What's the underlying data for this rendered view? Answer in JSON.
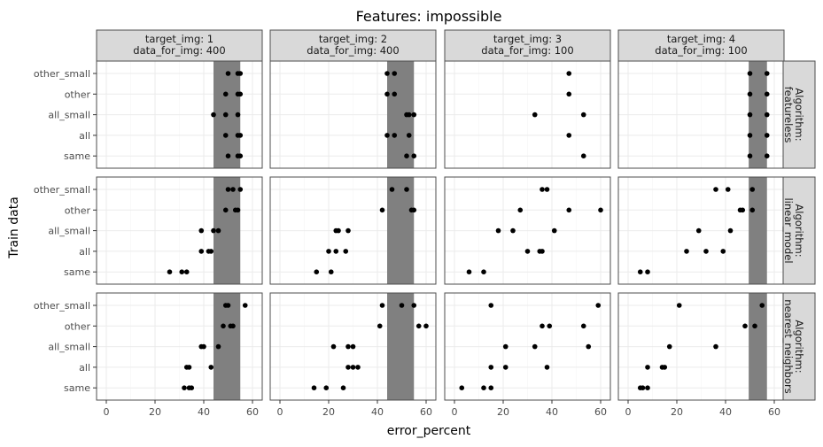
{
  "chart_data": {
    "type": "scatter",
    "title": "Features: impossible",
    "xlabel": "error_percent",
    "ylabel": "Train data",
    "xlim": [
      -4,
      64
    ],
    "xticks": [
      0,
      20,
      40,
      60
    ],
    "y_categories": [
      "other_small",
      "other",
      "all_small",
      "all",
      "same"
    ],
    "grid": true,
    "columns": [
      {
        "line1": "target_img: 1",
        "line2": "data_for_img: 400",
        "band": [
          44,
          55
        ]
      },
      {
        "line1": "target_img: 2",
        "line2": "data_for_img: 400",
        "band": [
          44,
          55
        ]
      },
      {
        "line1": "target_img: 3",
        "line2": "data_for_img: 100",
        "band": null
      },
      {
        "line1": "target_img: 4",
        "line2": "data_for_img: 100",
        "band": [
          49.5,
          57
        ]
      }
    ],
    "rows": [
      {
        "line1": "Algorithm:",
        "line2": "featureless"
      },
      {
        "line1": "Algorithm:",
        "line2": "linear_model"
      },
      {
        "line1": "Algorithm:",
        "line2": "nearest_neighbors"
      }
    ],
    "panels": [
      {
        "row": 0,
        "col": 0,
        "points": [
          {
            "y": "other_small",
            "x": [
              50,
              54,
              55
            ]
          },
          {
            "y": "other",
            "x": [
              49,
              54,
              55
            ]
          },
          {
            "y": "all_small",
            "x": [
              44,
              49,
              54
            ]
          },
          {
            "y": "all",
            "x": [
              49,
              54,
              55
            ]
          },
          {
            "y": "same",
            "x": [
              50,
              54,
              55
            ]
          }
        ]
      },
      {
        "row": 0,
        "col": 1,
        "points": [
          {
            "y": "other_small",
            "x": [
              44,
              47
            ]
          },
          {
            "y": "other",
            "x": [
              44,
              47
            ]
          },
          {
            "y": "all_small",
            "x": [
              52,
              53,
              55
            ]
          },
          {
            "y": "all",
            "x": [
              44,
              47,
              53
            ]
          },
          {
            "y": "same",
            "x": [
              52,
              55
            ]
          }
        ]
      },
      {
        "row": 0,
        "col": 2,
        "points": [
          {
            "y": "other_small",
            "x": [
              47
            ]
          },
          {
            "y": "other",
            "x": [
              47
            ]
          },
          {
            "y": "all_small",
            "x": [
              33,
              53
            ]
          },
          {
            "y": "all",
            "x": [
              47
            ]
          },
          {
            "y": "same",
            "x": [
              53
            ]
          }
        ]
      },
      {
        "row": 0,
        "col": 3,
        "points": [
          {
            "y": "other_small",
            "x": [
              50,
              57
            ]
          },
          {
            "y": "other",
            "x": [
              50,
              57
            ]
          },
          {
            "y": "all_small",
            "x": [
              50,
              57
            ]
          },
          {
            "y": "all",
            "x": [
              50,
              57
            ]
          },
          {
            "y": "same",
            "x": [
              50,
              57
            ]
          }
        ]
      },
      {
        "row": 1,
        "col": 0,
        "points": [
          {
            "y": "other_small",
            "x": [
              50,
              52,
              55
            ]
          },
          {
            "y": "other",
            "x": [
              49,
              53,
              54
            ]
          },
          {
            "y": "all_small",
            "x": [
              39,
              44,
              46
            ]
          },
          {
            "y": "all",
            "x": [
              39,
              42,
              43
            ]
          },
          {
            "y": "same",
            "x": [
              26,
              31,
              33
            ]
          }
        ]
      },
      {
        "row": 1,
        "col": 1,
        "points": [
          {
            "y": "other_small",
            "x": [
              46,
              52
            ]
          },
          {
            "y": "other",
            "x": [
              42,
              54,
              55
            ]
          },
          {
            "y": "all_small",
            "x": [
              23,
              24,
              28
            ]
          },
          {
            "y": "all",
            "x": [
              20,
              23,
              27
            ]
          },
          {
            "y": "same",
            "x": [
              15,
              21
            ]
          }
        ]
      },
      {
        "row": 1,
        "col": 2,
        "points": [
          {
            "y": "other_small",
            "x": [
              36,
              38
            ]
          },
          {
            "y": "other",
            "x": [
              27,
              47,
              60
            ]
          },
          {
            "y": "all_small",
            "x": [
              18,
              24,
              41
            ]
          },
          {
            "y": "all",
            "x": [
              30,
              35,
              36
            ]
          },
          {
            "y": "same",
            "x": [
              6,
              12
            ]
          }
        ]
      },
      {
        "row": 1,
        "col": 3,
        "points": [
          {
            "y": "other_small",
            "x": [
              36,
              41,
              51
            ]
          },
          {
            "y": "other",
            "x": [
              46,
              47,
              51
            ]
          },
          {
            "y": "all_small",
            "x": [
              29,
              42
            ]
          },
          {
            "y": "all",
            "x": [
              24,
              32,
              39
            ]
          },
          {
            "y": "same",
            "x": [
              5,
              8
            ]
          }
        ]
      },
      {
        "row": 2,
        "col": 0,
        "points": [
          {
            "y": "other_small",
            "x": [
              49,
              50,
              57
            ]
          },
          {
            "y": "other",
            "x": [
              48,
              51,
              52
            ]
          },
          {
            "y": "all_small",
            "x": [
              39,
              40,
              46
            ]
          },
          {
            "y": "all",
            "x": [
              33,
              34,
              43
            ]
          },
          {
            "y": "same",
            "x": [
              32,
              34,
              35
            ]
          }
        ]
      },
      {
        "row": 2,
        "col": 1,
        "points": [
          {
            "y": "other_small",
            "x": [
              42,
              50,
              55
            ]
          },
          {
            "y": "other",
            "x": [
              41,
              57,
              60
            ]
          },
          {
            "y": "all_small",
            "x": [
              22,
              28,
              30
            ]
          },
          {
            "y": "all",
            "x": [
              28,
              30,
              32
            ]
          },
          {
            "y": "same",
            "x": [
              14,
              19,
              26
            ]
          }
        ]
      },
      {
        "row": 2,
        "col": 2,
        "points": [
          {
            "y": "other_small",
            "x": [
              15,
              59
            ]
          },
          {
            "y": "other",
            "x": [
              36,
              39,
              53
            ]
          },
          {
            "y": "all_small",
            "x": [
              21,
              33,
              55
            ]
          },
          {
            "y": "all",
            "x": [
              15,
              21,
              38
            ]
          },
          {
            "y": "same",
            "x": [
              3,
              12,
              15
            ]
          }
        ]
      },
      {
        "row": 2,
        "col": 3,
        "points": [
          {
            "y": "other_small",
            "x": [
              21,
              55
            ]
          },
          {
            "y": "other",
            "x": [
              48,
              52
            ]
          },
          {
            "y": "all_small",
            "x": [
              17,
              36
            ]
          },
          {
            "y": "all",
            "x": [
              8,
              14,
              15
            ]
          },
          {
            "y": "same",
            "x": [
              5,
              6,
              8
            ]
          }
        ]
      }
    ]
  }
}
